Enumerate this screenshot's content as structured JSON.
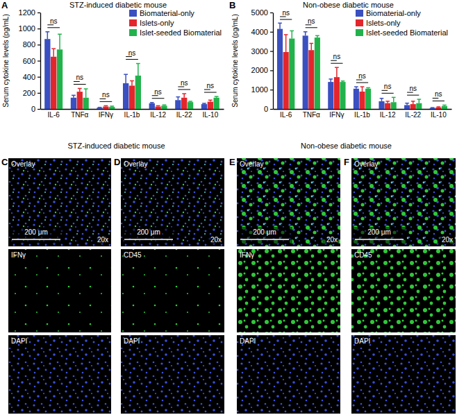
{
  "chart_data": [
    {
      "type": "bar",
      "title": "STZ-induced diabetic mouse",
      "y_label": "Serum cytokine levels (pg/mL)",
      "categories": [
        "IL-6",
        "TNFα",
        "IFNγ",
        "IL-1b",
        "IL-12",
        "IL-22",
        "IL-10"
      ],
      "series": [
        {
          "name": "Biomaterial-only",
          "color": "#3a4fc0",
          "values": [
            870,
            140,
            15,
            320,
            70,
            110,
            60
          ],
          "errors": [
            90,
            30,
            5,
            110,
            10,
            40,
            10
          ]
        },
        {
          "name": "Islets-only",
          "color": "#e3262c",
          "values": [
            650,
            215,
            30,
            290,
            30,
            140,
            90
          ],
          "errors": [
            100,
            40,
            10,
            60,
            10,
            50,
            20
          ]
        },
        {
          "name": "Islet-seeded Biomaterial",
          "color": "#22b24c",
          "values": [
            740,
            140,
            25,
            415,
            40,
            85,
            140
          ],
          "errors": [
            190,
            110,
            10,
            150,
            10,
            10,
            15
          ]
        }
      ],
      "annotations": [
        "ns",
        "ns",
        "ns",
        "ns",
        "ns",
        "ns",
        "ns"
      ],
      "ylim": [
        0,
        1200
      ],
      "yticks": [
        0,
        200,
        400,
        600,
        800,
        1000,
        1200
      ],
      "grid": false,
      "legend": "upper right"
    },
    {
      "type": "bar",
      "title": "Non-obese diabetic mouse",
      "y_label": "Serum cytokine levels (pg/mL)",
      "categories": [
        "IL-6",
        "TNFα",
        "IFNγ",
        "IL-1b",
        "IL-12",
        "IL-22",
        "IL-10"
      ],
      "series": [
        {
          "name": "Biomaterial-only",
          "color": "#3a4fc0",
          "values": [
            4150,
            3800,
            1400,
            1050,
            400,
            200,
            50
          ],
          "errors": [
            300,
            200,
            150,
            100,
            150,
            100,
            20
          ]
        },
        {
          "name": "Islets-only",
          "color": "#e3262c",
          "values": [
            2950,
            3050,
            1650,
            900,
            300,
            250,
            80
          ],
          "errors": [
            900,
            350,
            500,
            250,
            100,
            150,
            30
          ]
        },
        {
          "name": "Islet-seeded Biomaterial",
          "color": "#22b24c",
          "values": [
            3650,
            3700,
            1400,
            1050,
            350,
            300,
            150
          ],
          "errors": [
            400,
            100,
            50,
            50,
            250,
            200,
            50
          ]
        }
      ],
      "annotations": [
        "ns",
        "ns",
        "ns",
        "ns",
        "ns",
        "ns",
        "ns"
      ],
      "ylim": [
        0,
        5000
      ],
      "yticks": [
        0,
        1000,
        2000,
        3000,
        4000,
        5000
      ],
      "grid": false,
      "legend": "upper right"
    }
  ],
  "figure": {
    "chart_panel_labels": [
      "A",
      "B"
    ],
    "image_groups": [
      {
        "title": "STZ-induced diabetic mouse",
        "panels": [
          {
            "label": "C",
            "images": [
              "Overlay",
              "IFNγ",
              "DAPI"
            ]
          },
          {
            "label": "D",
            "images": [
              "Overlay",
              "CD45",
              "DAPI"
            ]
          }
        ]
      },
      {
        "title": "Non-obese diabetic mouse",
        "panels": [
          {
            "label": "E",
            "images": [
              "Overlay",
              "IFNγ",
              "DAPI"
            ]
          },
          {
            "label": "F",
            "images": [
              "Overlay",
              "CD45",
              "DAPI"
            ]
          }
        ]
      }
    ],
    "scale_bar": "200 μm",
    "magnification": "20x"
  }
}
